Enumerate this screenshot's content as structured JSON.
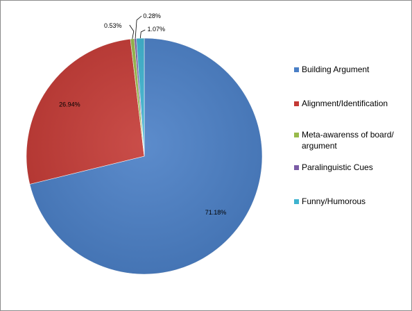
{
  "chart_data": {
    "type": "pie",
    "title": "",
    "categories": [
      "Building Argument",
      "Alignment/Identification",
      "Meta-awarenss of board/ argument",
      "Paralinguistic Cues",
      "Funny/Humorous"
    ],
    "values": [
      71.18,
      26.94,
      0.53,
      0.28,
      1.07
    ],
    "data_labels": [
      "71.18%",
      "26.94%",
      "0.53%",
      "0.28%",
      "1.07%"
    ],
    "colors": [
      "#4a7fc6",
      "#c43a35",
      "#98ba4b",
      "#7b5ca6",
      "#3eb3cf"
    ],
    "start_angle": "12 o'clock, clockwise",
    "legend_position": "right"
  }
}
